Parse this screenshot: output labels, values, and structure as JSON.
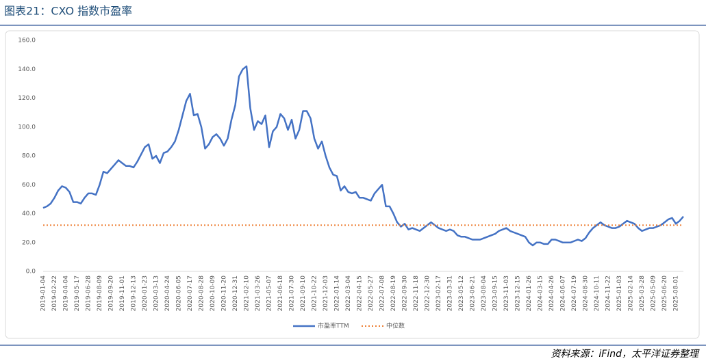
{
  "title": "图表21：CXO 指数市盈率",
  "source": "资料来源：iFind，太平洋证券整理",
  "chart_data": {
    "type": "line",
    "categories": [
      "2019-01-04",
      null,
      null,
      "2019-02-22",
      null,
      null,
      "2019-04-04",
      null,
      null,
      "2019-05-17",
      null,
      null,
      "2019-06-28",
      null,
      null,
      "2019-08-09",
      null,
      null,
      "2019-09-20",
      null,
      null,
      "2019-11-01",
      null,
      null,
      "2019-12-13",
      null,
      null,
      "2020-01-23",
      null,
      null,
      "2020-03-13",
      null,
      null,
      "2020-04-24",
      null,
      null,
      "2020-06-05",
      null,
      null,
      "2020-07-17",
      null,
      null,
      "2020-08-28",
      null,
      null,
      "2020-10-09",
      null,
      null,
      "2020-11-20",
      null,
      null,
      "2020-12-31",
      null,
      null,
      "2021-02-10",
      null,
      null,
      "2021-03-26",
      null,
      null,
      "2021-05-07",
      null,
      null,
      "2021-06-18",
      null,
      null,
      "2021-07-30",
      null,
      null,
      "2021-09-10",
      null,
      null,
      "2021-10-22",
      null,
      null,
      "2021-12-03",
      null,
      null,
      "2022-01-14",
      null,
      null,
      "2022-03-04",
      null,
      null,
      "2022-04-15",
      null,
      null,
      "2022-05-27",
      null,
      null,
      "2022-07-08",
      null,
      null,
      "2022-08-19",
      null,
      null,
      "2022-09-30",
      null,
      null,
      "2022-11-18",
      null,
      null,
      "2022-12-30",
      null,
      null,
      "2023-02-17",
      null,
      null,
      "2023-03-31",
      null,
      null,
      "2023-05-12",
      null,
      null,
      "2023-06-21",
      null,
      null,
      "2023-08-04",
      null,
      null,
      "2023-09-15",
      null,
      null,
      "2023-11-03",
      null,
      null,
      "2023-12-15",
      null,
      null,
      "2024-01-26",
      null,
      null,
      "2024-03-15",
      null,
      null,
      "2024-04-26",
      null,
      null,
      "2024-06-07",
      null,
      null,
      "2024-07-19",
      null,
      null,
      "2024-08-30",
      null,
      null,
      "2024-10-11",
      null,
      null,
      "2024-11-22",
      null,
      null,
      "2025-01-03",
      null,
      null,
      "2025-02-14",
      null,
      null,
      "2025-03-28",
      null,
      null,
      "2025-05-09",
      null,
      null,
      "2025-06-20",
      null,
      null,
      "2025-08-01",
      null,
      null
    ],
    "series": [
      {
        "name": "市盈率TTM",
        "color": "#4472c4",
        "style": "solid",
        "values": [
          44,
          45,
          47,
          51,
          56,
          59,
          58,
          55,
          48,
          48,
          47,
          51,
          54,
          54,
          53,
          60,
          69,
          68,
          71,
          74,
          77,
          75,
          73,
          73,
          72,
          76,
          81,
          86,
          88,
          78,
          80,
          75,
          82,
          83,
          86,
          90,
          98,
          108,
          118,
          123,
          108,
          109,
          100,
          85,
          88,
          93,
          95,
          92,
          87,
          92,
          105,
          115,
          135,
          140,
          142,
          113,
          98,
          104,
          102,
          108,
          86,
          97,
          100,
          109,
          106,
          98,
          105,
          92,
          98,
          111,
          111,
          106,
          92,
          85,
          90,
          80,
          72,
          67,
          66,
          56,
          59,
          55,
          54,
          55,
          51,
          51,
          50,
          49,
          54,
          57,
          60,
          45,
          45,
          40,
          34,
          31,
          33,
          29,
          30,
          29,
          28,
          30,
          32,
          34,
          32,
          30,
          29,
          28,
          29,
          28,
          25,
          24,
          24,
          23,
          22,
          22,
          22,
          23,
          24,
          25,
          26,
          28,
          29,
          30,
          28,
          27,
          26,
          25,
          24,
          20,
          18,
          20,
          20,
          19,
          19,
          22,
          22,
          21,
          20,
          20,
          20,
          21,
          22,
          21,
          23,
          27,
          30,
          32,
          34,
          32,
          31,
          30,
          30,
          31,
          33,
          35,
          34,
          33,
          30,
          28,
          29,
          30,
          30,
          31,
          32,
          34,
          36,
          37,
          33,
          35,
          38
        ]
      },
      {
        "name": "中位数",
        "color": "#ed7d31",
        "style": "dotted",
        "values": [
          32,
          32,
          32,
          32,
          32,
          32,
          32,
          32,
          32,
          32,
          32,
          32,
          32,
          32,
          32,
          32,
          32,
          32,
          32,
          32,
          32,
          32,
          32,
          32,
          32,
          32,
          32,
          32,
          32,
          32,
          32,
          32,
          32,
          32,
          32,
          32,
          32,
          32,
          32,
          32,
          32,
          32,
          32,
          32,
          32,
          32,
          32,
          32,
          32,
          32,
          32,
          32,
          32,
          32,
          32,
          32,
          32,
          32,
          32,
          32,
          32,
          32,
          32,
          32,
          32,
          32,
          32,
          32,
          32,
          32,
          32,
          32,
          32,
          32,
          32,
          32,
          32,
          32,
          32,
          32,
          32,
          32,
          32,
          32,
          32,
          32,
          32,
          32,
          32,
          32,
          32,
          32,
          32,
          32,
          32,
          32,
          32,
          32,
          32,
          32,
          32,
          32,
          32,
          32,
          32,
          32,
          32,
          32,
          32,
          32,
          32,
          32,
          32,
          32,
          32,
          32,
          32,
          32,
          32,
          32,
          32,
          32,
          32,
          32,
          32,
          32,
          32,
          32,
          32,
          32,
          32,
          32,
          32,
          32,
          32,
          32,
          32,
          32,
          32,
          32,
          32,
          32,
          32,
          32,
          32,
          32,
          32,
          32,
          32,
          32,
          32,
          32,
          32,
          32,
          32,
          32,
          32,
          32,
          32,
          32,
          32,
          32,
          32,
          32,
          32,
          32,
          32,
          32,
          32,
          32,
          32
        ]
      }
    ],
    "ylim": [
      0,
      160
    ],
    "yticks": [
      {
        "value": 0,
        "label": "0.0"
      },
      {
        "value": 20,
        "label": "20.0"
      },
      {
        "value": 40,
        "label": "40.0"
      },
      {
        "value": 60,
        "label": "60.0"
      },
      {
        "value": 80,
        "label": "80.0"
      },
      {
        "value": 100,
        "label": "100.0"
      },
      {
        "value": 120,
        "label": "120.0"
      },
      {
        "value": 140,
        "label": "140.0"
      },
      {
        "value": 160,
        "label": "160.0"
      }
    ],
    "grid": false,
    "legend": "bottom"
  }
}
